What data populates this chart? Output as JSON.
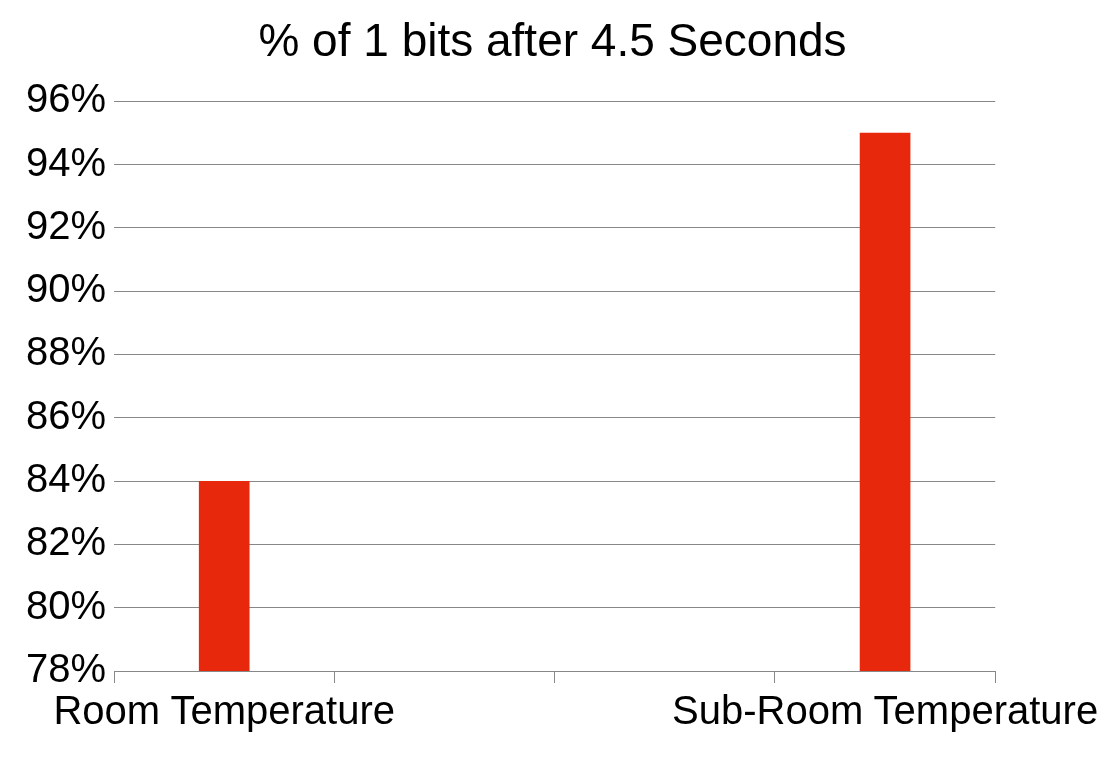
{
  "chart_data": {
    "type": "bar",
    "title": "% of 1 bits after 4.5 Seconds",
    "categories": [
      "Room Temperature",
      null,
      null,
      "Sub-Room Temperature"
    ],
    "values": [
      84,
      null,
      null,
      95
    ],
    "color": "#e8280c",
    "ylim": [
      78,
      96
    ],
    "yticks": [
      {
        "value": 78,
        "label": "78%"
      },
      {
        "value": 80,
        "label": "80%"
      },
      {
        "value": 82,
        "label": "82%"
      },
      {
        "value": 84,
        "label": "84%"
      },
      {
        "value": 86,
        "label": "86%"
      },
      {
        "value": 88,
        "label": "88%"
      },
      {
        "value": 90,
        "label": "90%"
      },
      {
        "value": 92,
        "label": "92%"
      },
      {
        "value": 94,
        "label": "94%"
      },
      {
        "value": 96,
        "label": "96%"
      }
    ],
    "grid": "y",
    "legend": false
  }
}
